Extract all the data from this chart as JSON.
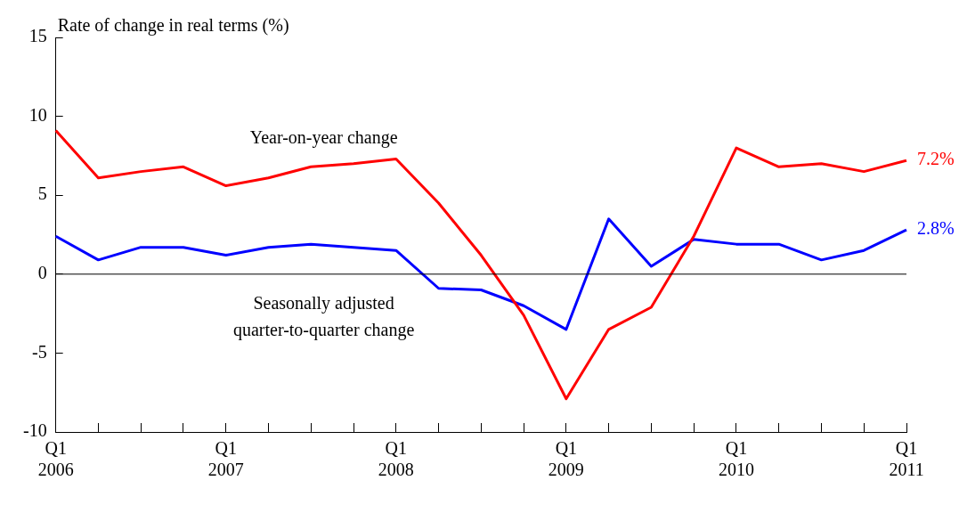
{
  "chart_data": {
    "type": "line",
    "ylabel": "Rate of change in real terms (%)",
    "categories": [
      "Q1\n2006",
      null,
      null,
      null,
      "Q1\n2007",
      null,
      null,
      null,
      "Q1\n2008",
      null,
      null,
      null,
      "Q1\n2009",
      null,
      null,
      null,
      "Q1\n2010",
      null,
      null,
      null,
      "Q1\n2011"
    ],
    "series": [
      {
        "name": "Year-on-year change",
        "color": "#ff0000",
        "values": [
          9.1,
          6.1,
          6.5,
          6.8,
          5.6,
          6.1,
          6.8,
          7.0,
          7.3,
          4.5,
          1.2,
          -2.6,
          -7.9,
          -3.5,
          -2.1,
          2.4,
          8.0,
          6.8,
          7.0,
          6.5,
          7.2
        ],
        "value_labels": [
          null,
          null,
          null,
          null,
          null,
          null,
          null,
          null,
          null,
          null,
          null,
          null,
          null,
          null,
          null,
          null,
          null,
          null,
          null,
          null,
          "7.2%"
        ]
      },
      {
        "name": "Seasonally adjusted quarter-to-quarter change",
        "color": "#0000ff",
        "values": [
          2.4,
          0.9,
          1.7,
          1.7,
          1.2,
          1.7,
          1.9,
          1.7,
          1.5,
          -0.9,
          -1.0,
          -2.0,
          -3.5,
          3.5,
          0.5,
          2.2,
          1.9,
          1.9,
          0.9,
          1.5,
          2.8
        ],
        "value_labels": [
          null,
          null,
          null,
          null,
          null,
          null,
          null,
          null,
          null,
          null,
          null,
          null,
          null,
          null,
          null,
          null,
          null,
          null,
          null,
          null,
          "2.8%"
        ]
      }
    ],
    "ylim": [
      -10,
      15
    ],
    "yticks": [
      -10,
      -5,
      0,
      5,
      10,
      15
    ],
    "ref_lines": [
      {
        "axis": "y",
        "value": 0,
        "color": "#000000"
      }
    ],
    "grid": false,
    "legend": false,
    "marker": "none",
    "line_style": "solid"
  }
}
